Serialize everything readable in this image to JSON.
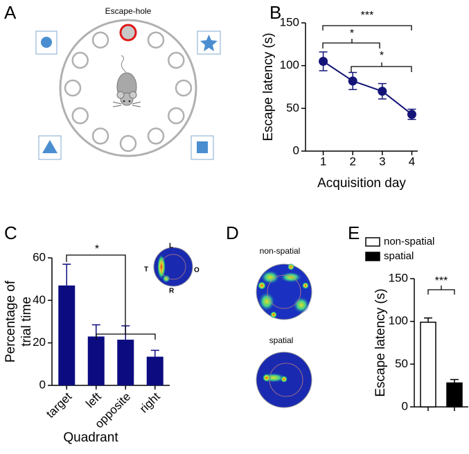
{
  "panel_labels": [
    "A",
    "B",
    "C",
    "D",
    "E"
  ],
  "maze": {
    "label": "Escape-hole"
  },
  "inset": {
    "labels": [
      "L",
      "T",
      "O",
      "R"
    ]
  },
  "heatmaps": {
    "labels": [
      "non-spatial",
      "spatial"
    ]
  },
  "chart_data": [
    {
      "type": "line",
      "x": [
        1,
        2,
        3,
        4
      ],
      "xlim": [
        0.4,
        4.2
      ],
      "xticks": [
        1,
        2,
        3,
        4
      ],
      "ylim": [
        0,
        150
      ],
      "yticks": [
        0,
        50,
        100,
        150
      ],
      "x_label": "Acquisition day",
      "y_label": "Escape latency (s)",
      "series": [
        {
          "color": "#141478",
          "values": [
            105,
            82,
            70,
            43
          ],
          "errors": [
            11,
            10,
            9,
            6
          ]
        }
      ],
      "annotations": [
        "***",
        "*",
        "*"
      ]
    },
    {
      "type": "bar",
      "categories": [
        "target",
        "left",
        "opposite",
        "right"
      ],
      "ylim": [
        0,
        60
      ],
      "yticks": [
        0,
        20,
        40,
        60
      ],
      "x_label": "Quadrant",
      "y_label": [
        "Percentage of",
        "trial time"
      ],
      "series": [
        {
          "color": "#0c0c80",
          "values": [
            47,
            23,
            21.5,
            13.5
          ],
          "errors": [
            10,
            5.5,
            6.5,
            3
          ]
        }
      ],
      "annotations": [
        "*"
      ]
    },
    {
      "type": "bar",
      "ylim": [
        0,
        150
      ],
      "yticks": [
        0,
        50,
        100,
        150
      ],
      "y_label": "Escape latency (s)",
      "series": [
        {
          "name": "non-spatial",
          "color": "#ffffff",
          "values": [
            99
          ],
          "errors": [
            5
          ]
        },
        {
          "name": "spatial",
          "color": "#000000",
          "values": [
            28
          ],
          "errors": [
            4
          ]
        }
      ],
      "annotations": [
        "***"
      ]
    }
  ]
}
